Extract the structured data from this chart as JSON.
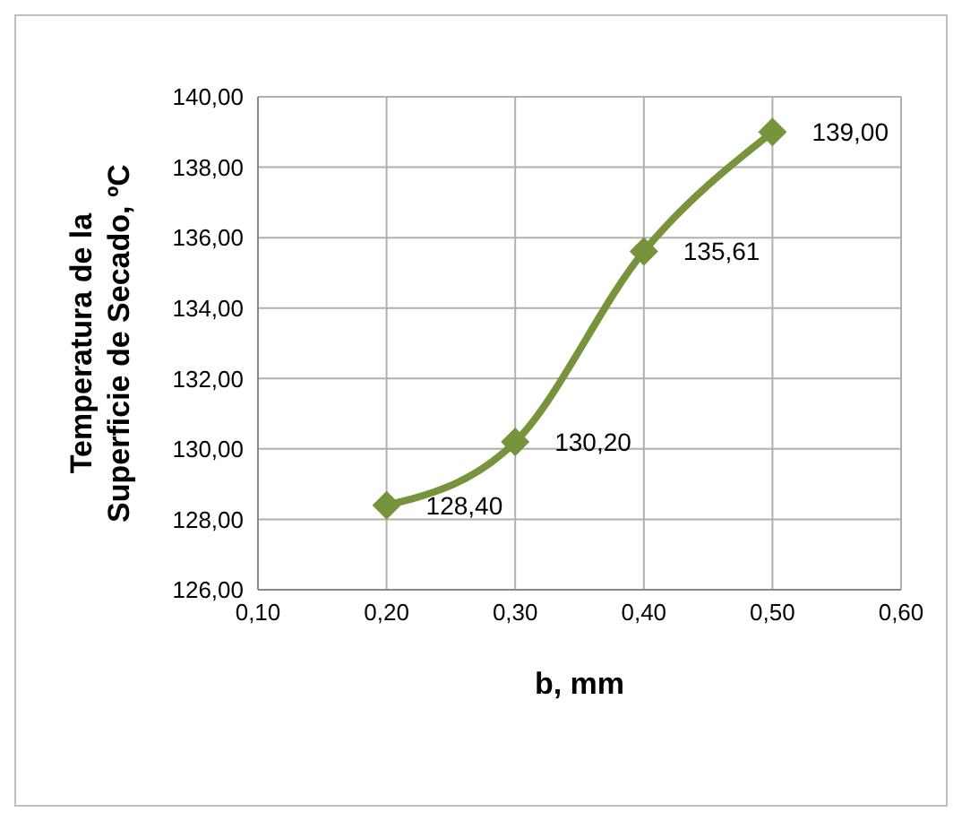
{
  "chart_data": {
    "type": "line",
    "xlabel": "b, mm",
    "ylabel": "Temperatura de la Superficie de Secado, ºC",
    "x": [
      0.2,
      0.3,
      0.4,
      0.5
    ],
    "series": [
      {
        "color": "#77933c",
        "values": [
          128.4,
          130.2,
          135.61,
          139.0
        ],
        "value_labels": [
          "128,40",
          "130,20",
          "135,61",
          "139,00"
        ]
      }
    ],
    "xlim": [
      0.1,
      0.6
    ],
    "xticks": [
      {
        "value": 0.1,
        "label": "0,10"
      },
      {
        "value": 0.2,
        "label": "0,20"
      },
      {
        "value": 0.3,
        "label": "0,30"
      },
      {
        "value": 0.4,
        "label": "0,40"
      },
      {
        "value": 0.5,
        "label": "0,50"
      },
      {
        "value": 0.6,
        "label": "0,60"
      }
    ],
    "ylim": [
      126,
      140
    ],
    "yticks": [
      {
        "value": 126,
        "label": "126,00"
      },
      {
        "value": 128,
        "label": "128,00"
      },
      {
        "value": 130,
        "label": "130,00"
      },
      {
        "value": 132,
        "label": "132,00"
      },
      {
        "value": 134,
        "label": "134,00"
      },
      {
        "value": 136,
        "label": "136,00"
      },
      {
        "value": 138,
        "label": "138,00"
      },
      {
        "value": 140,
        "label": "140,00"
      }
    ],
    "grid": true,
    "marker": "diamond",
    "line_style": "solid",
    "legend": false
  }
}
